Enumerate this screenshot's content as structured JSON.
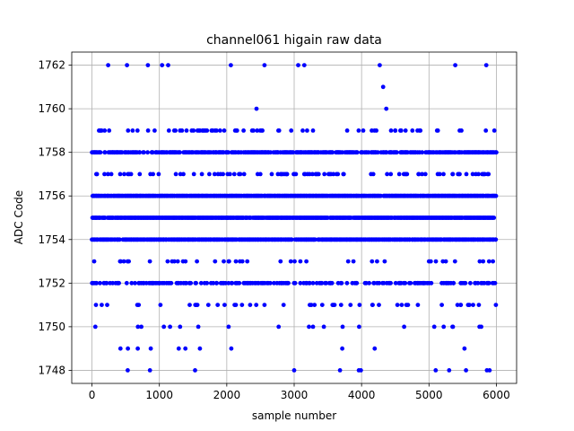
{
  "chart_data": {
    "type": "scatter",
    "title": "channel061 higain raw data",
    "xlabel": "sample number",
    "ylabel": "ADC Code",
    "xlim": [
      -300,
      6300
    ],
    "ylim": [
      1747.4,
      1762.6
    ],
    "xticks": [
      0,
      1000,
      2000,
      3000,
      4000,
      5000,
      6000
    ],
    "yticks": [
      1748,
      1750,
      1752,
      1754,
      1756,
      1758,
      1760,
      1762
    ],
    "grid": true,
    "marker_color": "#0000ff",
    "n_samples": 6000,
    "density": {
      "1748": 0.003,
      "1749": 0.008,
      "1750": 0.035,
      "1751": 0.09,
      "1752": 0.35,
      "1753": 0.08,
      "1754": 0.92,
      "1755": 0.92,
      "1756": 0.92,
      "1757": 0.18,
      "1758": 0.7,
      "1759": 0.13,
      "1760": 0.012,
      "1761": 0.0002,
      "1762": 0.002
    },
    "outliers": [
      {
        "x": 240,
        "y": 1762
      },
      {
        "x": 520,
        "y": 1762
      },
      {
        "x": 830,
        "y": 1762
      },
      {
        "x": 1040,
        "y": 1762
      },
      {
        "x": 1130,
        "y": 1762
      },
      {
        "x": 2060,
        "y": 1762
      },
      {
        "x": 2560,
        "y": 1762
      },
      {
        "x": 3060,
        "y": 1762
      },
      {
        "x": 3150,
        "y": 1762
      },
      {
        "x": 4270,
        "y": 1762
      },
      {
        "x": 5390,
        "y": 1762
      },
      {
        "x": 5850,
        "y": 1762
      },
      {
        "x": 4320,
        "y": 1761
      },
      {
        "x": 530,
        "y": 1748
      },
      {
        "x": 860,
        "y": 1748
      },
      {
        "x": 1530,
        "y": 1748
      },
      {
        "x": 3000,
        "y": 1748
      },
      {
        "x": 3680,
        "y": 1748
      },
      {
        "x": 3960,
        "y": 1748
      },
      {
        "x": 3990,
        "y": 1748
      },
      {
        "x": 5100,
        "y": 1748
      },
      {
        "x": 5300,
        "y": 1748
      },
      {
        "x": 5550,
        "y": 1748
      },
      {
        "x": 5860,
        "y": 1748
      },
      {
        "x": 5900,
        "y": 1748
      }
    ]
  }
}
